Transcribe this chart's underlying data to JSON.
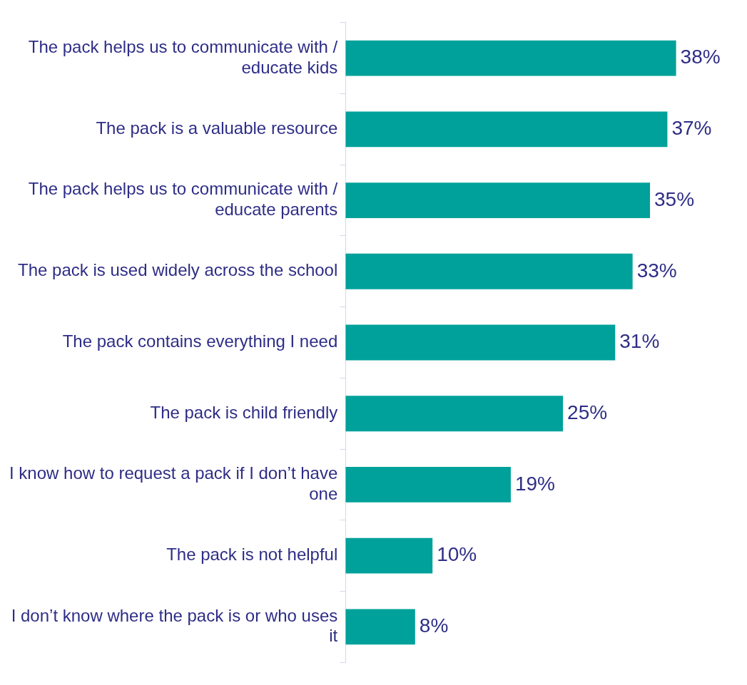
{
  "chart_data": {
    "type": "bar",
    "orientation": "horizontal",
    "categories": [
      "The pack helps us to communicate with / educate kids",
      "The pack is a valuable resource",
      "The pack helps us to communicate with / educate parents",
      "The pack is used widely across the school",
      "The pack contains everything I need",
      "The pack is child friendly",
      "I know how to request a pack if I don’t have one",
      "The pack is not helpful",
      "I don’t know where the pack is or who uses it"
    ],
    "values": [
      38,
      37,
      35,
      33,
      31,
      25,
      19,
      10,
      8
    ],
    "value_labels": [
      "38%",
      "37%",
      "35%",
      "33%",
      "31%",
      "25%",
      "19%",
      "10%",
      "8%"
    ],
    "color": "#00a19a",
    "legend": false
  }
}
